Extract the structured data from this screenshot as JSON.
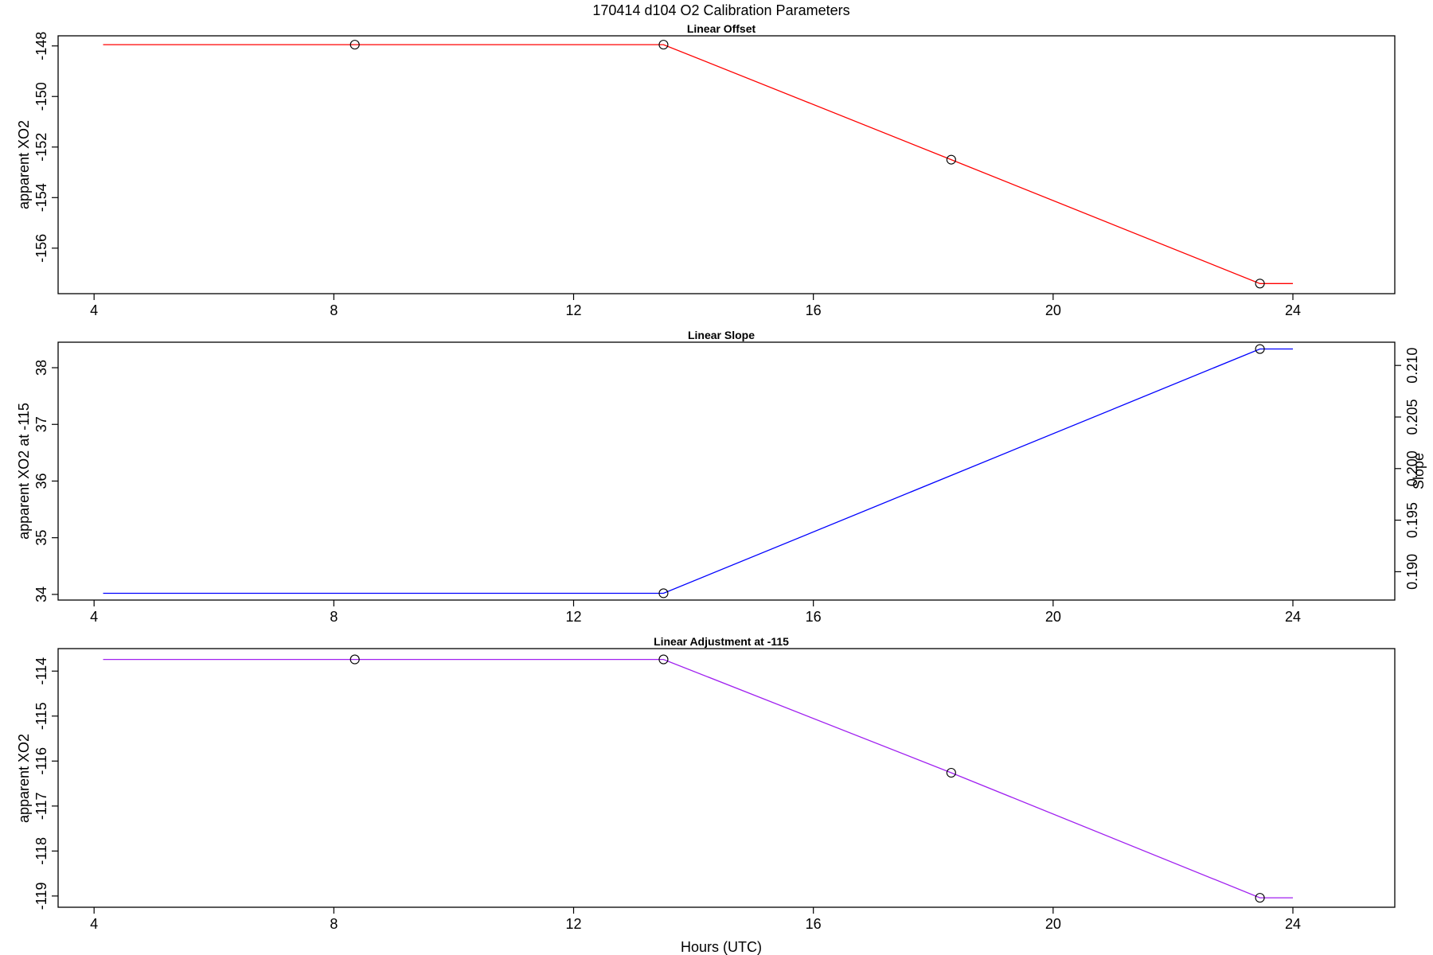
{
  "figure": {
    "title": "170414   d104   O2 Calibration Parameters",
    "xlabel": "Hours (UTC)"
  },
  "chart_data": [
    {
      "type": "line",
      "title": "Linear Offset",
      "xlabel": "",
      "ylabel": "apparent XO2",
      "xlim": [
        3.4,
        25.7
      ],
      "ylim": [
        -157.8,
        -147.6
      ],
      "x_ticks": [
        "4",
        "8",
        "12",
        "16",
        "20",
        "24"
      ],
      "y_ticks": [
        "-148",
        "-150",
        "-152",
        "-154",
        "-156"
      ],
      "grid": false,
      "line_color": "#ff0000",
      "line": {
        "x": [
          4.15,
          13.5,
          18.3,
          23.45,
          24.0
        ],
        "y": [
          -147.95,
          -147.95,
          -152.5,
          -157.4,
          -157.4
        ]
      },
      "points": {
        "x": [
          8.35,
          13.5,
          18.3,
          23.45
        ],
        "y": [
          -147.95,
          -147.95,
          -152.5,
          -157.4
        ]
      }
    },
    {
      "type": "line",
      "title": "Linear Slope",
      "xlabel": "",
      "ylabel": "apparent XO2 at -115",
      "y2label": "Slope",
      "xlim": [
        3.4,
        25.7
      ],
      "ylim": [
        33.9,
        38.45
      ],
      "x_ticks": [
        "4",
        "8",
        "12",
        "16",
        "20",
        "24"
      ],
      "y_ticks": [
        "34",
        "35",
        "36",
        "37",
        "38"
      ],
      "y2_ticks": [
        {
          "label": "0.190",
          "y": 34.4
        },
        {
          "label": "0.195",
          "y": 35.31
        },
        {
          "label": "0.200",
          "y": 36.22
        },
        {
          "label": "0.205",
          "y": 37.13
        },
        {
          "label": "0.210",
          "y": 38.04
        }
      ],
      "grid": false,
      "line_color": "#0000ff",
      "line": {
        "x": [
          4.15,
          13.5,
          23.45,
          24.0
        ],
        "y": [
          34.02,
          34.02,
          38.33,
          38.33
        ]
      },
      "points": {
        "x": [
          13.5,
          23.45
        ],
        "y": [
          34.02,
          38.33
        ]
      }
    },
    {
      "type": "line",
      "title": "Linear Adjustment at -115",
      "xlabel": "Hours (UTC)",
      "ylabel": "apparent XO2",
      "xlim": [
        3.4,
        25.7
      ],
      "ylim": [
        -119.25,
        -113.5
      ],
      "x_ticks": [
        "4",
        "8",
        "12",
        "16",
        "20",
        "24"
      ],
      "y_ticks": [
        "-114",
        "-115",
        "-116",
        "-117",
        "-118",
        "-119"
      ],
      "grid": false,
      "line_color": "#a020f0",
      "line": {
        "x": [
          4.15,
          13.5,
          18.3,
          23.45,
          24.0
        ],
        "y": [
          -113.74,
          -113.74,
          -116.26,
          -119.04,
          -119.04
        ]
      },
      "points": {
        "x": [
          8.35,
          13.5,
          18.3,
          23.45
        ],
        "y": [
          -113.74,
          -113.74,
          -116.26,
          -119.04
        ]
      }
    }
  ]
}
